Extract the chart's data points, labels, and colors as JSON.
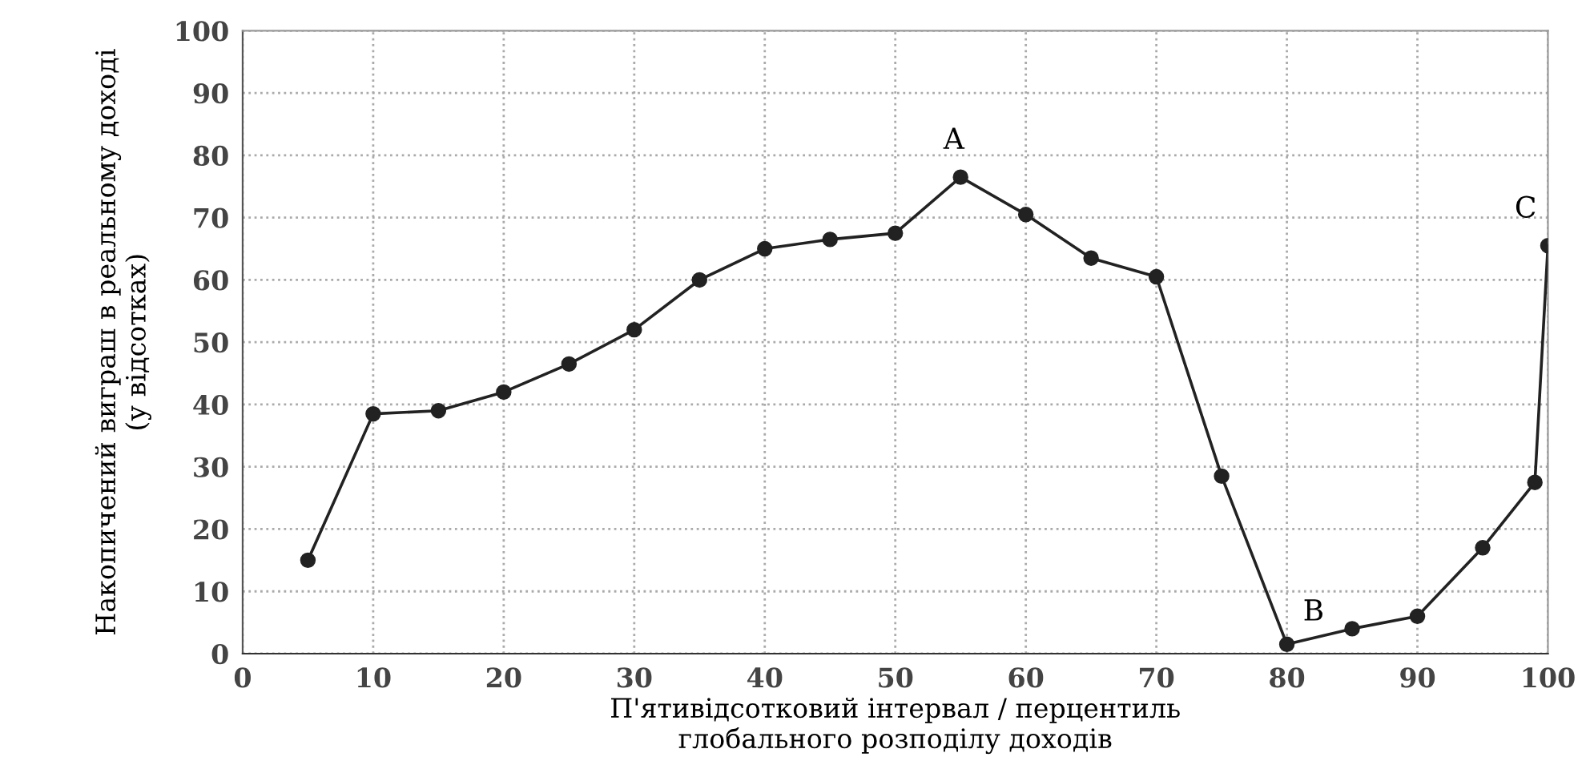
{
  "chart_data": {
    "type": "line",
    "xlabel": "П'ятивідсотковий інтервал / перцентиль\nглобального розподілу доходів",
    "ylabel": "Накопичений виграш в реальному доході\n(у відсотках)",
    "x": [
      5,
      10,
      15,
      20,
      25,
      30,
      35,
      40,
      45,
      50,
      55,
      60,
      65,
      70,
      75,
      80,
      85,
      90,
      95,
      99,
      100
    ],
    "series": [
      {
        "color": "#222222",
        "values": [
          15,
          38.5,
          39,
          42,
          46.5,
          52,
          60,
          65,
          66.5,
          67.5,
          76.5,
          70.5,
          63.5,
          60.5,
          28.5,
          1.5,
          4,
          6,
          17,
          27.5,
          65.5
        ]
      }
    ],
    "xlim": [
      0,
      100
    ],
    "ylim": [
      0,
      100
    ],
    "xticks": [
      0,
      10,
      20,
      30,
      40,
      50,
      60,
      70,
      80,
      90,
      100
    ],
    "yticks": [
      0,
      10,
      20,
      30,
      40,
      50,
      60,
      70,
      80,
      90,
      100
    ],
    "grid": true,
    "marker": "circle",
    "line_style": "solid",
    "annotations": [
      {
        "text": "A",
        "x": 55,
        "y": 76.5
      },
      {
        "text": "B",
        "x": 80,
        "y": 1.5
      },
      {
        "text": "C",
        "x": 100,
        "y": 65.5
      }
    ]
  }
}
